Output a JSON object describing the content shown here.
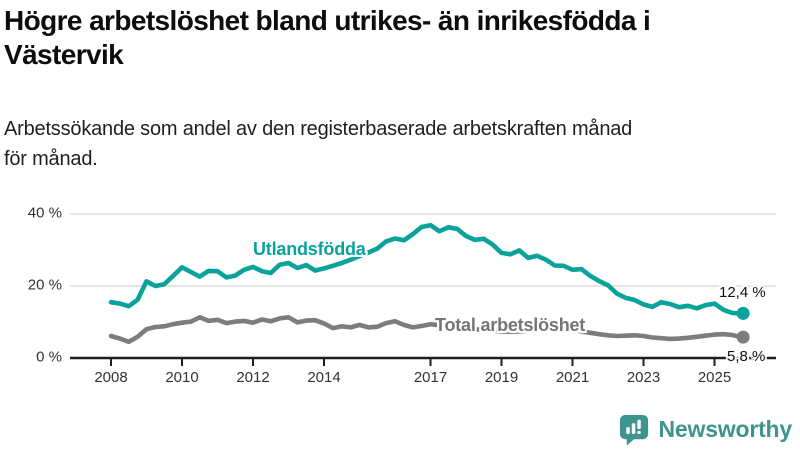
{
  "headline": "Högre arbetslöshet bland utrikes- än inrikesfödda i Västervik",
  "headline_lines": [
    "Högre arbetslöshet bland utrikes- än inrikesfödda i",
    "Västervik"
  ],
  "subtitle": "Arbetssökande som andel av den registerbaserade arbetskraften månad för månad.",
  "subtitle_lines": [
    "Arbetssökande som andel av den registerbaserade arbetskraften månad",
    "för månad."
  ],
  "branding": {
    "name": "Newsworthy",
    "icon": "newsworthy-speech-bubble-bar-chart-icon",
    "icon_color": "#3e948f",
    "text_color": "#3e948f"
  },
  "colors": {
    "teal_series": "#0aa39b",
    "gray_series": "#7d7d7d",
    "gray_label": "#757575",
    "grid": "#dcdcdc",
    "axis": "#1f1f1f",
    "tick_text": "#333333",
    "end_label_text": "#111111"
  },
  "chart_data": {
    "type": "line",
    "title": "Högre arbetslöshet bland utrikes- än inrikesfödda i Västervik",
    "subtitle": "Arbetssökande som andel av den registerbaserade arbetskraften månad för månad.",
    "unit": "%",
    "grid": true,
    "legend_position": "inline-labels",
    "xlim": [
      2007.9,
      2026.1
    ],
    "ylim": [
      0,
      42
    ],
    "x_tick_years": [
      2008,
      2010,
      2012,
      2014,
      2017,
      2019,
      2021,
      2023,
      2025
    ],
    "x_tick_labels": [
      "2008",
      "2010",
      "2012",
      "2014",
      "2017",
      "2019",
      "2021",
      "2023",
      "2025"
    ],
    "y_tick_values": [
      0,
      20,
      40
    ],
    "y_tick_labels": [
      "0 %",
      "20 %",
      "40 %"
    ],
    "series": [
      {
        "name": "Total arbetslöshet",
        "color": "#7d7d7d",
        "end_label": "5,8 %",
        "end_value": 5.8,
        "points": [
          [
            2008.0,
            6.1
          ],
          [
            2008.25,
            5.4
          ],
          [
            2008.5,
            4.5
          ],
          [
            2008.75,
            5.9
          ],
          [
            2009.0,
            8.0
          ],
          [
            2009.25,
            8.6
          ],
          [
            2009.5,
            8.8
          ],
          [
            2009.75,
            9.4
          ],
          [
            2010.0,
            9.8
          ],
          [
            2010.25,
            10.1
          ],
          [
            2010.5,
            11.3
          ],
          [
            2010.75,
            10.3
          ],
          [
            2011.0,
            10.6
          ],
          [
            2011.25,
            9.7
          ],
          [
            2011.5,
            10.1
          ],
          [
            2011.75,
            10.3
          ],
          [
            2012.0,
            9.8
          ],
          [
            2012.25,
            10.7
          ],
          [
            2012.5,
            10.2
          ],
          [
            2012.75,
            11.0
          ],
          [
            2013.0,
            11.3
          ],
          [
            2013.25,
            9.9
          ],
          [
            2013.5,
            10.4
          ],
          [
            2013.75,
            10.5
          ],
          [
            2014.0,
            9.6
          ],
          [
            2014.25,
            8.3
          ],
          [
            2014.5,
            8.8
          ],
          [
            2014.75,
            8.5
          ],
          [
            2015.0,
            9.2
          ],
          [
            2015.25,
            8.5
          ],
          [
            2015.5,
            8.7
          ],
          [
            2015.75,
            9.7
          ],
          [
            2016.0,
            10.2
          ],
          [
            2016.25,
            9.2
          ],
          [
            2016.5,
            8.5
          ],
          [
            2016.75,
            8.9
          ],
          [
            2017.0,
            9.4
          ],
          [
            2017.25,
            9.1
          ],
          [
            2017.5,
            8.9
          ],
          [
            2017.75,
            8.6
          ],
          [
            2018.0,
            8.3
          ],
          [
            2018.25,
            8.0
          ],
          [
            2018.5,
            7.8
          ],
          [
            2018.75,
            7.6
          ],
          [
            2019.0,
            7.4
          ],
          [
            2019.25,
            7.3
          ],
          [
            2019.5,
            7.4
          ],
          [
            2019.75,
            7.6
          ],
          [
            2020.0,
            7.9
          ],
          [
            2020.25,
            8.7
          ],
          [
            2020.5,
            8.8
          ],
          [
            2020.75,
            8.3
          ],
          [
            2021.0,
            7.9
          ],
          [
            2021.25,
            7.4
          ],
          [
            2021.5,
            7.0
          ],
          [
            2021.75,
            6.6
          ],
          [
            2022.0,
            6.3
          ],
          [
            2022.25,
            6.1
          ],
          [
            2022.5,
            6.2
          ],
          [
            2022.75,
            6.3
          ],
          [
            2023.0,
            6.1
          ],
          [
            2023.25,
            5.7
          ],
          [
            2023.5,
            5.5
          ],
          [
            2023.75,
            5.3
          ],
          [
            2024.0,
            5.4
          ],
          [
            2024.25,
            5.6
          ],
          [
            2024.5,
            5.9
          ],
          [
            2024.75,
            6.2
          ],
          [
            2025.0,
            6.5
          ],
          [
            2025.25,
            6.6
          ],
          [
            2025.5,
            6.4
          ],
          [
            2025.75,
            5.8
          ]
        ]
      },
      {
        "name": "Utlandsfödda",
        "color": "#0aa39b",
        "end_label": "12,4 %",
        "end_value": 12.4,
        "points": [
          [
            2008.0,
            15.5
          ],
          [
            2008.25,
            15.1
          ],
          [
            2008.5,
            14.4
          ],
          [
            2008.75,
            16.2
          ],
          [
            2009.0,
            21.3
          ],
          [
            2009.25,
            20.0
          ],
          [
            2009.5,
            20.5
          ],
          [
            2009.75,
            22.8
          ],
          [
            2010.0,
            25.2
          ],
          [
            2010.25,
            23.9
          ],
          [
            2010.5,
            22.6
          ],
          [
            2010.75,
            24.2
          ],
          [
            2011.0,
            24.1
          ],
          [
            2011.25,
            22.4
          ],
          [
            2011.5,
            22.9
          ],
          [
            2011.75,
            24.5
          ],
          [
            2012.0,
            25.3
          ],
          [
            2012.25,
            24.1
          ],
          [
            2012.5,
            23.6
          ],
          [
            2012.75,
            25.9
          ],
          [
            2013.0,
            26.4
          ],
          [
            2013.25,
            25.0
          ],
          [
            2013.5,
            25.8
          ],
          [
            2013.75,
            24.3
          ],
          [
            2014.0,
            24.9
          ],
          [
            2014.25,
            25.6
          ],
          [
            2014.5,
            26.4
          ],
          [
            2014.75,
            27.3
          ],
          [
            2015.0,
            28.3
          ],
          [
            2015.25,
            29.3
          ],
          [
            2015.5,
            30.4
          ],
          [
            2015.75,
            32.4
          ],
          [
            2016.0,
            33.2
          ],
          [
            2016.25,
            32.7
          ],
          [
            2016.5,
            34.4
          ],
          [
            2016.75,
            36.4
          ],
          [
            2017.0,
            36.9
          ],
          [
            2017.25,
            35.2
          ],
          [
            2017.5,
            36.3
          ],
          [
            2017.75,
            35.9
          ],
          [
            2018.0,
            33.9
          ],
          [
            2018.25,
            32.8
          ],
          [
            2018.5,
            33.1
          ],
          [
            2018.75,
            31.5
          ],
          [
            2019.0,
            29.2
          ],
          [
            2019.25,
            28.8
          ],
          [
            2019.5,
            29.9
          ],
          [
            2019.75,
            27.8
          ],
          [
            2020.0,
            28.4
          ],
          [
            2020.25,
            27.3
          ],
          [
            2020.5,
            25.7
          ],
          [
            2020.75,
            25.6
          ],
          [
            2021.0,
            24.5
          ],
          [
            2021.25,
            24.7
          ],
          [
            2021.5,
            22.8
          ],
          [
            2021.75,
            21.4
          ],
          [
            2022.0,
            20.2
          ],
          [
            2022.25,
            17.9
          ],
          [
            2022.5,
            16.7
          ],
          [
            2022.75,
            16.1
          ],
          [
            2023.0,
            14.9
          ],
          [
            2023.25,
            14.2
          ],
          [
            2023.5,
            15.5
          ],
          [
            2023.75,
            15.0
          ],
          [
            2024.0,
            14.1
          ],
          [
            2024.25,
            14.5
          ],
          [
            2024.5,
            13.8
          ],
          [
            2024.75,
            14.7
          ],
          [
            2025.0,
            15.1
          ],
          [
            2025.25,
            13.4
          ],
          [
            2025.5,
            12.5
          ],
          [
            2025.75,
            12.4
          ]
        ]
      }
    ]
  }
}
